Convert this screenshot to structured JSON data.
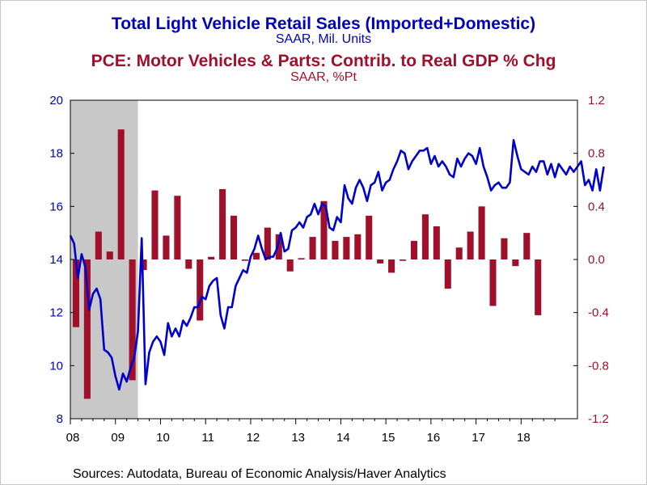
{
  "titles": {
    "series1_title": "Total Light Vehicle Retail Sales (Imported+Domestic)",
    "series1_units": "SAAR, Mil. Units",
    "series2_title": "PCE: Motor Vehicles & Parts: Contrib. to Real GDP % Chg",
    "series2_units": "SAAR, %Pt"
  },
  "source": "Sources:  Autodata, Bureau of Economic Analysis/Haver Analytics",
  "colors": {
    "line": "#0000cc",
    "bars": "#a0102a",
    "recession": "#c8c8c8",
    "left_axis_text": "#0000bb",
    "right_axis_text": "#a0102a"
  },
  "chart_data": {
    "type": "bar+line",
    "x_range": [
      2008.0,
      2019.25
    ],
    "left_axis": {
      "ylim": [
        8,
        20
      ],
      "ticks": [
        "8",
        "10",
        "12",
        "14",
        "16",
        "18",
        "20"
      ]
    },
    "right_axis": {
      "ylim": [
        -1.2,
        1.2
      ],
      "ticks": [
        "-1.2",
        "-0.8",
        "-0.4",
        "0.0",
        "0.4",
        "0.8",
        "1.2"
      ]
    },
    "x_ticks": [
      "08",
      "09",
      "10",
      "11",
      "12",
      "13",
      "14",
      "15",
      "16",
      "17",
      "18"
    ],
    "recession": [
      2008.0,
      2009.5
    ],
    "bars": {
      "series": "PCE: Motor Vehicles & Parts: Contrib. to Real GDP % Chg",
      "period": "quarterly, 2008Q1-2018Q4",
      "values": [
        -0.51,
        -1.05,
        0.21,
        0.06,
        0.98,
        -0.91,
        -0.08,
        0.52,
        0.18,
        0.48,
        -0.07,
        -0.46,
        0.02,
        0.53,
        0.33,
        -0.01,
        0.05,
        0.24,
        0.19,
        -0.09,
        0.01,
        0.17,
        0.44,
        0.14,
        0.17,
        0.19,
        0.33,
        -0.03,
        -0.1,
        -0.01,
        0.14,
        0.34,
        0.25,
        -0.22,
        0.09,
        0.21,
        0.4,
        -0.35,
        0.16,
        -0.05,
        0.2,
        -0.42
      ]
    },
    "line": {
      "series": "Total Light Vehicle Retail Sales (Imported+Domestic)",
      "period": "monthly, 2008M01-2019M03",
      "values": [
        14.9,
        14.6,
        13.3,
        14.2,
        13.7,
        12.1,
        12.7,
        12.9,
        12.5,
        10.6,
        10.5,
        10.3,
        9.6,
        9.1,
        9.7,
        9.4,
        9.9,
        10.3,
        11.3,
        14.8,
        9.3,
        10.5,
        10.9,
        11.1,
        10.9,
        10.4,
        11.6,
        11.1,
        11.4,
        11.1,
        11.7,
        11.5,
        11.8,
        12.2,
        12.2,
        12.6,
        12.5,
        13.0,
        13.2,
        13.3,
        11.9,
        11.4,
        12.2,
        12.2,
        13.0,
        13.3,
        13.6,
        13.5,
        14.1,
        14.4,
        14.9,
        14.4,
        14.0,
        14.1,
        14.1,
        14.4,
        15.0,
        14.3,
        14.4,
        15.1,
        15.2,
        15.4,
        15.2,
        15.6,
        15.7,
        16.1,
        15.7,
        16.1,
        16.0,
        15.2,
        15.1,
        15.6,
        15.4,
        16.8,
        16.3,
        16.1,
        16.7,
        17.0,
        16.7,
        16.2,
        16.8,
        16.9,
        17.3,
        16.6,
        16.9,
        17.0,
        17.4,
        17.7,
        18.1,
        18.0,
        17.4,
        17.7,
        17.9,
        18.1,
        18.1,
        18.2,
        17.6,
        17.9,
        17.5,
        17.7,
        17.5,
        17.2,
        17.1,
        17.8,
        17.5,
        17.8,
        18.0,
        17.9,
        17.6,
        18.2,
        17.5,
        17.1,
        16.6,
        16.8,
        16.9,
        16.7,
        16.7,
        16.9,
        18.5,
        17.9,
        17.4,
        17.3,
        17.2,
        17.5,
        17.3,
        17.7,
        17.7,
        17.2,
        17.6,
        17.1,
        17.6,
        17.4,
        17.2,
        17.5,
        17.3,
        17.5,
        17.7,
        16.8,
        17.0,
        16.6,
        17.4,
        16.6,
        17.5
      ]
    }
  }
}
